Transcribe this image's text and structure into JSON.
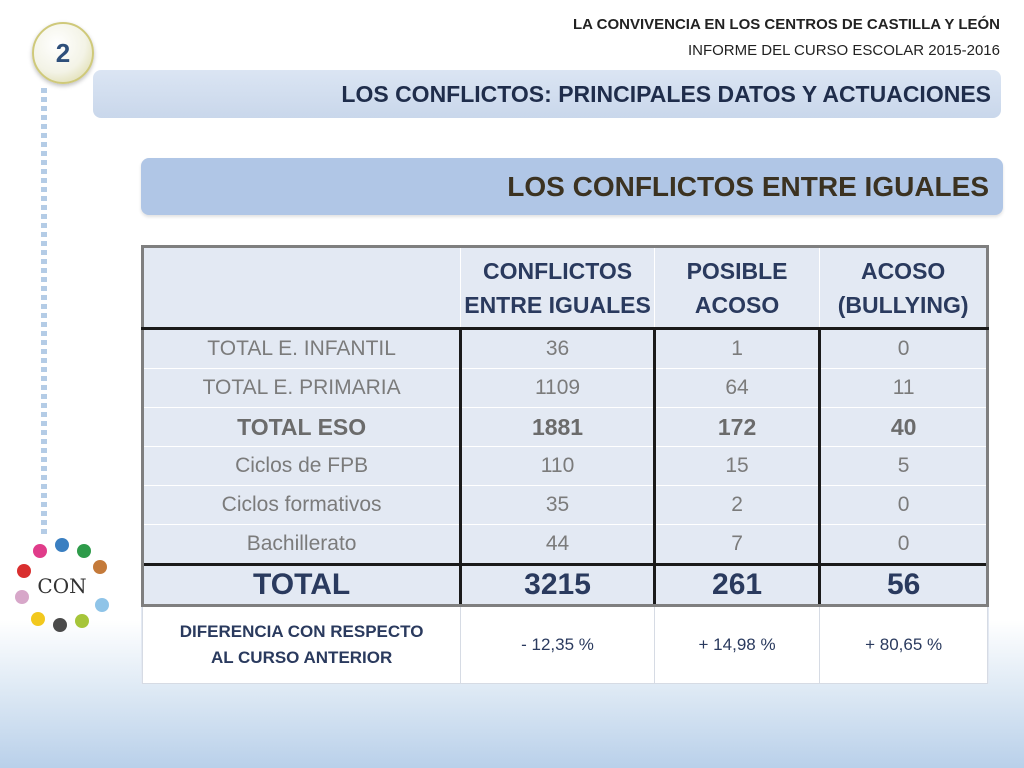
{
  "header": {
    "line1": "LA CONVIVENCIA EN LOS CENTROS DE CASTILLA Y LEÓN",
    "line2": "INFORME DEL CURSO ESCOLAR 2015-2016"
  },
  "badge": "2",
  "section_title": "LOS CONFLICTOS: PRINCIPALES DATOS Y ACTUACIONES",
  "slide_title": "LOS CONFLICTOS ENTRE IGUALES",
  "table": {
    "columns": [
      "",
      "CONFLICTOS ENTRE IGUALES",
      "POSIBLE ACOSO",
      "ACOSO (BULLYING)"
    ],
    "column_lines": [
      [],
      [
        "CONFLICTOS",
        "ENTRE IGUALES"
      ],
      [
        "POSIBLE",
        "ACOSO"
      ],
      [
        "ACOSO",
        "(BULLYING)"
      ]
    ],
    "rows": [
      {
        "label": "TOTAL E. INFANTIL",
        "values": [
          "36",
          "1",
          "0"
        ]
      },
      {
        "label": "TOTAL E. PRIMARIA",
        "values": [
          "1109",
          "64",
          "11"
        ]
      },
      {
        "label": "TOTAL ESO",
        "values": [
          "1881",
          "172",
          "40"
        ]
      },
      {
        "label": "Ciclos de FPB",
        "values": [
          "110",
          "15",
          "5"
        ]
      },
      {
        "label": "Ciclos formativos",
        "values": [
          "35",
          "2",
          "0"
        ]
      },
      {
        "label": "Bachillerato",
        "values": [
          "44",
          "7",
          "0"
        ]
      }
    ],
    "total": {
      "label": "TOTAL",
      "values": [
        "3215",
        "261",
        "56"
      ]
    },
    "difference": {
      "label_lines": [
        "DIFERENCIA CON RESPECTO",
        "AL CURSO ANTERIOR"
      ],
      "values": [
        "- 12,35 %",
        "+ 14,98 %",
        "+ 80,65 %"
      ]
    }
  },
  "logo": {
    "text": "CON"
  },
  "colors": {
    "title_bar": "#b0c6e6",
    "section_bar": "#d3def0",
    "table_bg": "#e3e9f3",
    "header_text": "#2a3a5e"
  }
}
